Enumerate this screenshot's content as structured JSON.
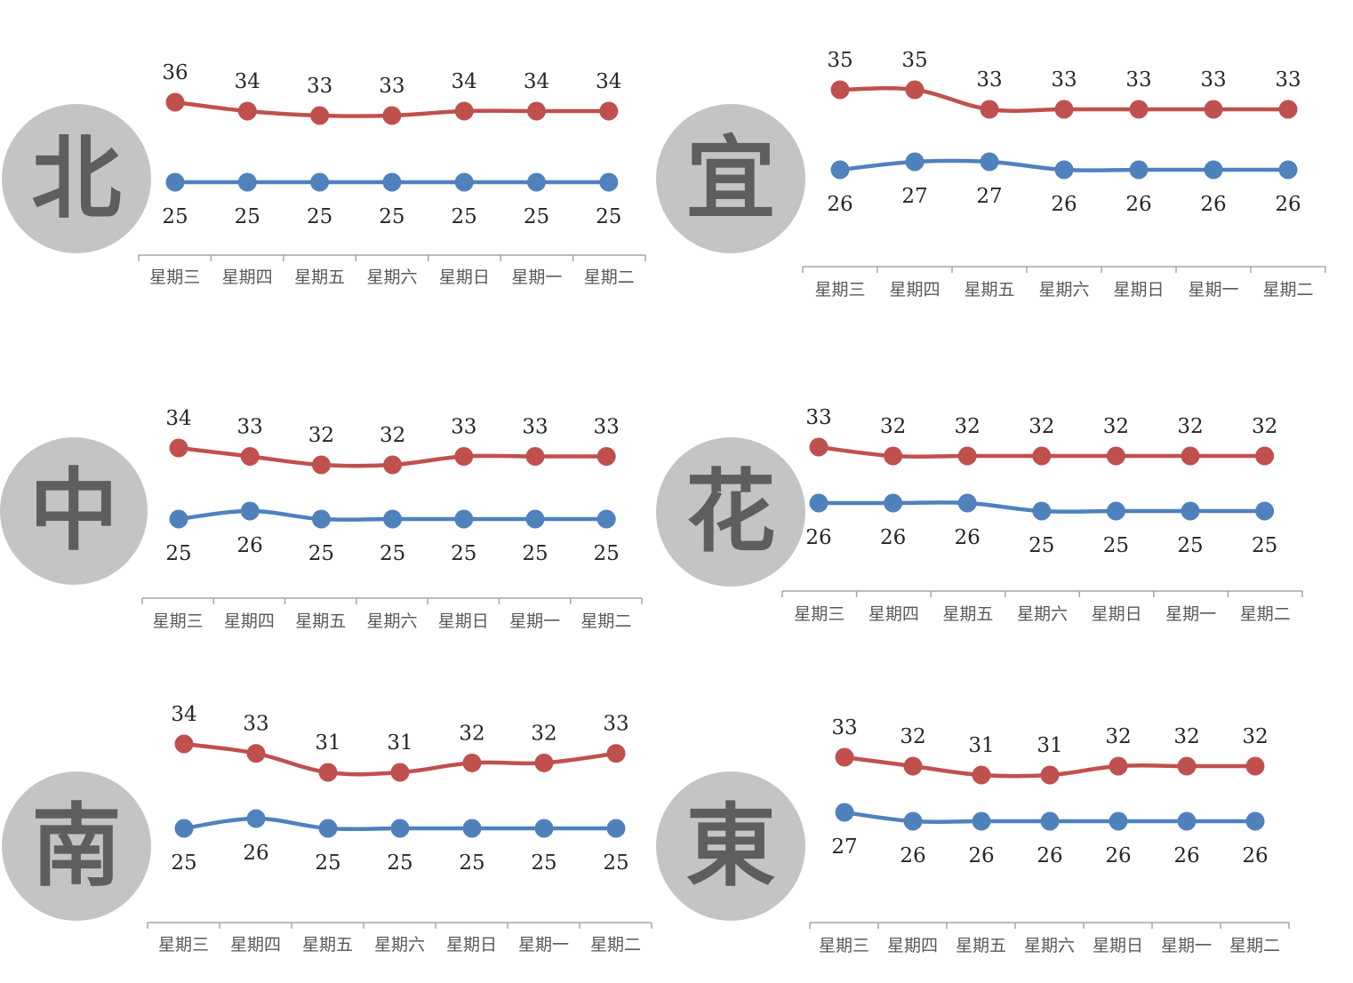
{
  "colors": {
    "high": "#c0504d",
    "low": "#4f81bd",
    "badge": "#c4c4c4",
    "badge_text": "#5e5e5e",
    "axis": "#a6a6a6"
  },
  "chart_data": [
    {
      "type": "line",
      "region": "北",
      "categories": [
        "星期三",
        "星期四",
        "星期五",
        "星期六",
        "星期日",
        "星期一",
        "星期二"
      ],
      "series": [
        {
          "values": [
            36,
            34,
            33,
            33,
            34,
            34,
            34
          ],
          "color": "#c0504d"
        },
        {
          "values": [
            25,
            25,
            25,
            25,
            25,
            25,
            25
          ],
          "color": "#4f81bd"
        }
      ]
    },
    {
      "type": "line",
      "region": "宜",
      "categories": [
        "星期三",
        "星期四",
        "星期五",
        "星期六",
        "星期日",
        "星期一",
        "星期二"
      ],
      "series": [
        {
          "values": [
            35,
            35,
            33,
            33,
            33,
            33,
            33
          ],
          "color": "#c0504d"
        },
        {
          "values": [
            26,
            27,
            27,
            26,
            26,
            26,
            26
          ],
          "color": "#4f81bd"
        }
      ]
    },
    {
      "type": "line",
      "region": "中",
      "categories": [
        "星期三",
        "星期四",
        "星期五",
        "星期六",
        "星期日",
        "星期一",
        "星期二"
      ],
      "series": [
        {
          "values": [
            34,
            33,
            32,
            32,
            33,
            33,
            33
          ],
          "color": "#c0504d"
        },
        {
          "values": [
            25,
            26,
            25,
            25,
            25,
            25,
            25
          ],
          "color": "#4f81bd"
        }
      ]
    },
    {
      "type": "line",
      "region": "花",
      "categories": [
        "星期三",
        "星期四",
        "星期五",
        "星期六",
        "星期日",
        "星期一",
        "星期二"
      ],
      "series": [
        {
          "values": [
            33,
            32,
            32,
            32,
            32,
            32,
            32
          ],
          "color": "#c0504d"
        },
        {
          "values": [
            26,
            26,
            26,
            25,
            25,
            25,
            25
          ],
          "color": "#4f81bd"
        }
      ]
    },
    {
      "type": "line",
      "region": "南",
      "categories": [
        "星期三",
        "星期四",
        "星期五",
        "星期六",
        "星期日",
        "星期一",
        "星期二"
      ],
      "series": [
        {
          "values": [
            34,
            33,
            31,
            31,
            32,
            32,
            33
          ],
          "color": "#c0504d"
        },
        {
          "values": [
            25,
            26,
            25,
            25,
            25,
            25,
            25
          ],
          "color": "#4f81bd"
        }
      ]
    },
    {
      "type": "line",
      "region": "東",
      "categories": [
        "星期三",
        "星期四",
        "星期五",
        "星期六",
        "星期日",
        "星期一",
        "星期二"
      ],
      "series": [
        {
          "values": [
            33,
            32,
            31,
            31,
            32,
            32,
            32
          ],
          "color": "#c0504d"
        },
        {
          "values": [
            27,
            26,
            26,
            26,
            26,
            26,
            26
          ],
          "color": "#4f81bd"
        }
      ]
    }
  ]
}
